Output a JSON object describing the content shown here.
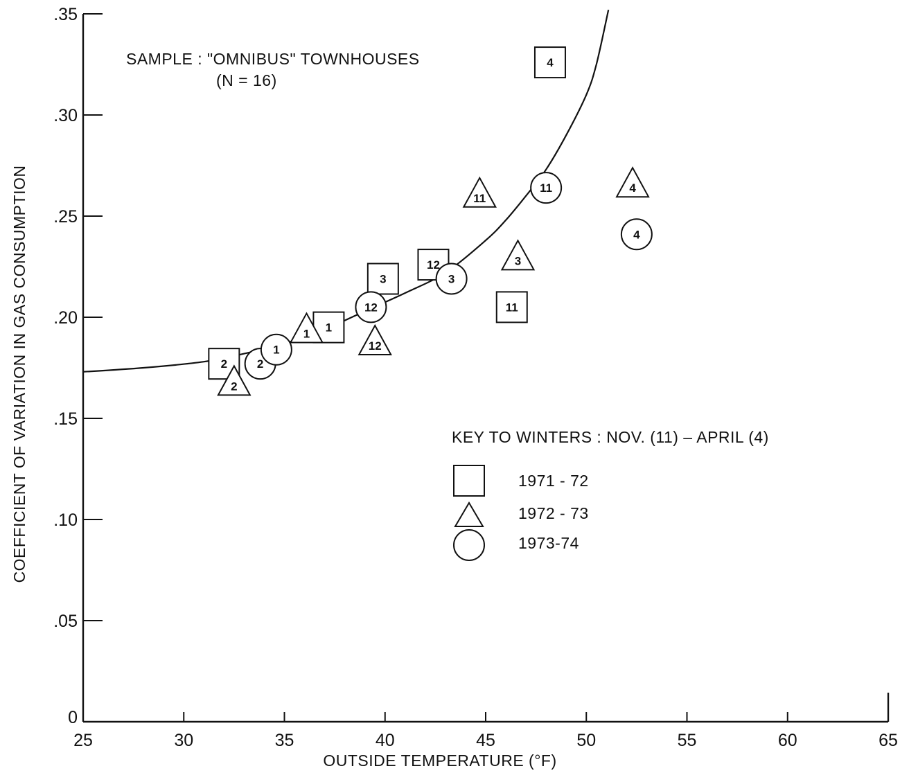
{
  "chart_data": {
    "type": "scatter",
    "title": "",
    "annotation": {
      "line1": "SAMPLE : \"OMNIBUS\" TOWNHOUSES",
      "line2": "(N = 16)"
    },
    "xlabel": "OUTSIDE   TEMPERATURE (°F)",
    "ylabel": "COEFFICIENT OF VARIATION IN GAS CONSUMPTION",
    "xlim": [
      25,
      65
    ],
    "ylim": [
      0,
      0.35
    ],
    "x_ticks": [
      {
        "value": 25,
        "label": "25"
      },
      {
        "value": 30,
        "label": "30"
      },
      {
        "value": 35,
        "label": "35"
      },
      {
        "value": 40,
        "label": "40"
      },
      {
        "value": 45,
        "label": "45"
      },
      {
        "value": 50,
        "label": "50"
      },
      {
        "value": 55,
        "label": "55"
      },
      {
        "value": 60,
        "label": "60"
      },
      {
        "value": 65,
        "label": "65"
      }
    ],
    "y_ticks": [
      {
        "value": 0,
        "label": "0"
      },
      {
        "value": 0.05,
        "label": ".05"
      },
      {
        "value": 0.1,
        "label": ".10"
      },
      {
        "value": 0.15,
        "label": ".15"
      },
      {
        "value": 0.2,
        "label": ".20"
      },
      {
        "value": 0.25,
        "label": ".25"
      },
      {
        "value": 0.3,
        "label": ".30"
      },
      {
        "value": 0.35,
        "label": ".35"
      }
    ],
    "grid": false,
    "legend": {
      "title": "KEY  TO WINTERS : NOV. (11) – APRIL (4)",
      "placement": "center-right",
      "entries": [
        {
          "shape": "square",
          "label": "1971 - 72"
        },
        {
          "shape": "triangle",
          "label": "1972 - 73"
        },
        {
          "shape": "circle",
          "label": "1973-74"
        }
      ]
    },
    "series": [
      {
        "shape": "square",
        "points": [
          {
            "x": 32.0,
            "y": 0.177,
            "label": "2"
          },
          {
            "x": 37.2,
            "y": 0.195,
            "label": "1"
          },
          {
            "x": 39.9,
            "y": 0.219,
            "label": "3"
          },
          {
            "x": 42.4,
            "y": 0.226,
            "label": "12"
          },
          {
            "x": 46.3,
            "y": 0.205,
            "label": "11"
          },
          {
            "x": 48.2,
            "y": 0.326,
            "label": "4"
          }
        ]
      },
      {
        "shape": "triangle",
        "points": [
          {
            "x": 32.5,
            "y": 0.167,
            "label": "2"
          },
          {
            "x": 36.1,
            "y": 0.193,
            "label": "1"
          },
          {
            "x": 39.5,
            "y": 0.187,
            "label": "12"
          },
          {
            "x": 44.7,
            "y": 0.26,
            "label": "11"
          },
          {
            "x": 46.6,
            "y": 0.229,
            "label": "3"
          },
          {
            "x": 52.3,
            "y": 0.265,
            "label": "4"
          }
        ]
      },
      {
        "shape": "circle",
        "points": [
          {
            "x": 33.8,
            "y": 0.177,
            "label": "2"
          },
          {
            "x": 34.6,
            "y": 0.184,
            "label": "1"
          },
          {
            "x": 39.3,
            "y": 0.205,
            "label": "12"
          },
          {
            "x": 43.3,
            "y": 0.219,
            "label": "3"
          },
          {
            "x": 48.0,
            "y": 0.264,
            "label": "11"
          },
          {
            "x": 52.5,
            "y": 0.241,
            "label": "4"
          }
        ]
      }
    ],
    "fit_curve": {
      "x": [
        25,
        28,
        31,
        33,
        35,
        37,
        39,
        41,
        43,
        45,
        46,
        47,
        48,
        49,
        50,
        50.5,
        51.1
      ],
      "y": [
        0.173,
        0.175,
        0.178,
        0.182,
        0.187,
        0.194,
        0.203,
        0.212,
        0.222,
        0.238,
        0.248,
        0.26,
        0.273,
        0.29,
        0.31,
        0.325,
        0.352
      ]
    }
  }
}
